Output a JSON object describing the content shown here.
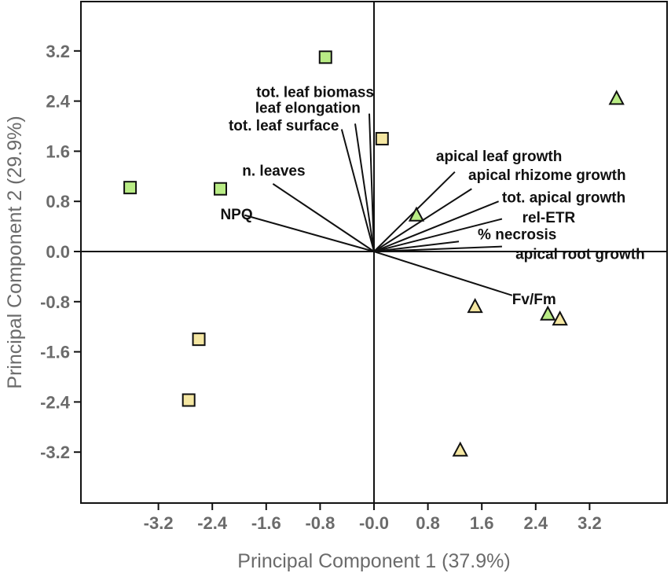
{
  "chart_data": {
    "type": "scatter",
    "subtype": "pca-biplot",
    "xlabel": "Principal Component 1 (37.9%)",
    "ylabel": "Principal Component 2 (29.9%)",
    "xlim": [
      -4.35,
      4.35
    ],
    "ylim": [
      -4.0,
      4.0
    ],
    "xticks": [
      -3.2,
      -2.4,
      -1.6,
      -0.8,
      0.0,
      0.8,
      1.6,
      2.4,
      3.2
    ],
    "xtick_labels": [
      "-3.2",
      "-2.4",
      "-1.6",
      "-0.8",
      "-0.0",
      "0.8",
      "1.6",
      "2.4",
      "3.2"
    ],
    "yticks": [
      3.2,
      2.4,
      1.6,
      0.8,
      0.0,
      -0.8,
      -1.6,
      -2.4,
      -3.2
    ],
    "ytick_labels": [
      "3.2",
      "2.4",
      "1.6",
      "0.8",
      "0.0",
      "-0.8",
      "-1.6",
      "-2.4",
      "-3.2"
    ],
    "colors": {
      "green": "#b9ec85",
      "yellow": "#f5e7a2",
      "marker_edge": "#111111",
      "axis_text": "#6b6b6b",
      "vector": "#111111"
    },
    "points": [
      {
        "shape": "square",
        "color": "green",
        "x": -0.72,
        "y": 3.1
      },
      {
        "shape": "square",
        "color": "yellow",
        "x": 0.12,
        "y": 1.8
      },
      {
        "shape": "square",
        "color": "green",
        "x": -3.62,
        "y": 1.02
      },
      {
        "shape": "square",
        "color": "green",
        "x": -2.28,
        "y": 1.0
      },
      {
        "shape": "square",
        "color": "yellow",
        "x": -2.6,
        "y": -1.4
      },
      {
        "shape": "square",
        "color": "yellow",
        "x": -2.75,
        "y": -2.37
      },
      {
        "shape": "triangle",
        "color": "green",
        "x": 3.6,
        "y": 2.44
      },
      {
        "shape": "triangle",
        "color": "green",
        "x": 0.63,
        "y": 0.58
      },
      {
        "shape": "triangle",
        "color": "yellow",
        "x": 1.5,
        "y": -0.88
      },
      {
        "shape": "triangle",
        "color": "green",
        "x": 2.58,
        "y": -1.0
      },
      {
        "shape": "triangle",
        "color": "yellow",
        "x": 2.76,
        "y": -1.08
      },
      {
        "shape": "triangle",
        "color": "yellow",
        "x": 1.28,
        "y": -3.17
      }
    ],
    "loadings": [
      {
        "label": "tot. leaf biomass",
        "x": -0.07,
        "y": 2.2,
        "anchor": "end",
        "label_x": 0.0,
        "label_y": 2.55
      },
      {
        "label": "leaf elongation",
        "x": -0.28,
        "y": 2.04,
        "anchor": "end",
        "label_x": -0.2,
        "label_y": 2.3
      },
      {
        "label": "tot. leaf surface",
        "x": -0.48,
        "y": 1.95,
        "anchor": "end",
        "label_x": -0.52,
        "label_y": 2.02
      },
      {
        "label": "n. leaves",
        "x": -1.5,
        "y": 1.08,
        "anchor": "end",
        "label_x": -1.02,
        "label_y": 1.3
      },
      {
        "label": "NPQ",
        "x": -1.92,
        "y": 0.58,
        "anchor": "end",
        "label_x": -1.8,
        "label_y": 0.6
      },
      {
        "label": "apical leaf growth",
        "x": 1.2,
        "y": 1.27,
        "anchor": "start",
        "label_x": 0.92,
        "label_y": 1.53
      },
      {
        "label": "apical rhizome growth",
        "x": 1.45,
        "y": 1.0,
        "anchor": "start",
        "label_x": 1.4,
        "label_y": 1.23
      },
      {
        "label": "tot. apical growth",
        "x": 1.85,
        "y": 0.8,
        "anchor": "start",
        "label_x": 1.9,
        "label_y": 0.87
      },
      {
        "label": "rel-ETR",
        "x": 1.9,
        "y": 0.52,
        "anchor": "start",
        "label_x": 2.2,
        "label_y": 0.55
      },
      {
        "label": "% necrosis",
        "x": 1.26,
        "y": 0.16,
        "anchor": "start",
        "label_x": 1.54,
        "label_y": 0.28
      },
      {
        "label": "apical root growth",
        "x": 1.9,
        "y": 0.08,
        "anchor": "start",
        "label_x": 2.1,
        "label_y": -0.03
      },
      {
        "label": "Fv/Fm",
        "x": 2.05,
        "y": -0.7,
        "anchor": "start",
        "label_x": 2.05,
        "label_y": -0.75
      }
    ]
  }
}
